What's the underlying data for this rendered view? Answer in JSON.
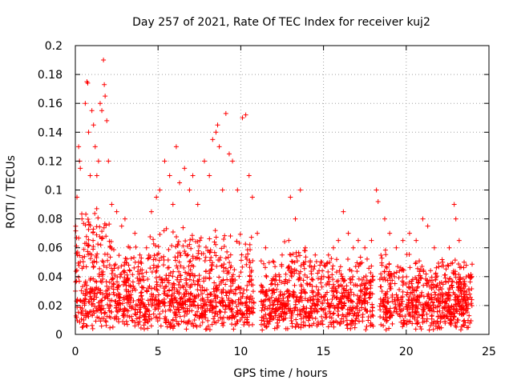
{
  "chart_data": {
    "type": "scatter",
    "title": "Day 257 of 2021, Rate Of TEC Index for receiver kuj2",
    "xlabel": "GPS time / hours",
    "ylabel": "ROTI / TECUs",
    "xlim": [
      0,
      25
    ],
    "ylim": [
      0,
      0.2
    ],
    "xticks": [
      "0",
      "5",
      "10",
      "15",
      "20",
      "25"
    ],
    "yticks": [
      "0",
      "0.02",
      "0.04",
      "0.06",
      "0.08",
      "0.1",
      "0.12",
      "0.14",
      "0.16",
      "0.18",
      "0.2"
    ],
    "grid": true,
    "marker": "+",
    "marker_color": "#ff0000",
    "series": [
      {
        "name": "ROTI",
        "note": "representative points read from the dense scatter; hours 0-24",
        "points": [
          [
            0.1,
            0.095
          ],
          [
            0.2,
            0.13
          ],
          [
            0.25,
            0.12
          ],
          [
            0.3,
            0.115
          ],
          [
            0.4,
            0.08
          ],
          [
            0.6,
            0.16
          ],
          [
            0.7,
            0.175
          ],
          [
            0.75,
            0.174
          ],
          [
            0.8,
            0.14
          ],
          [
            0.9,
            0.11
          ],
          [
            1.0,
            0.155
          ],
          [
            1.1,
            0.145
          ],
          [
            1.2,
            0.13
          ],
          [
            1.3,
            0.11
          ],
          [
            1.4,
            0.12
          ],
          [
            1.5,
            0.16
          ],
          [
            1.6,
            0.155
          ],
          [
            1.7,
            0.19
          ],
          [
            1.75,
            0.173
          ],
          [
            1.8,
            0.165
          ],
          [
            1.9,
            0.148
          ],
          [
            2.0,
            0.12
          ],
          [
            2.2,
            0.09
          ],
          [
            2.5,
            0.085
          ],
          [
            2.8,
            0.075
          ],
          [
            3.0,
            0.08
          ],
          [
            3.3,
            0.06
          ],
          [
            3.6,
            0.07
          ],
          [
            3.9,
            0.055
          ],
          [
            4.3,
            0.06
          ],
          [
            4.6,
            0.085
          ],
          [
            4.9,
            0.095
          ],
          [
            5.1,
            0.1
          ],
          [
            5.4,
            0.12
          ],
          [
            5.7,
            0.11
          ],
          [
            5.9,
            0.09
          ],
          [
            6.1,
            0.13
          ],
          [
            6.3,
            0.105
          ],
          [
            6.6,
            0.115
          ],
          [
            6.9,
            0.1
          ],
          [
            7.1,
            0.11
          ],
          [
            7.4,
            0.09
          ],
          [
            7.8,
            0.12
          ],
          [
            8.1,
            0.11
          ],
          [
            8.3,
            0.135
          ],
          [
            8.5,
            0.14
          ],
          [
            8.6,
            0.145
          ],
          [
            8.7,
            0.13
          ],
          [
            8.9,
            0.1
          ],
          [
            9.1,
            0.153
          ],
          [
            9.3,
            0.125
          ],
          [
            9.5,
            0.12
          ],
          [
            9.8,
            0.1
          ],
          [
            10.1,
            0.15
          ],
          [
            10.3,
            0.152
          ],
          [
            10.5,
            0.11
          ],
          [
            10.7,
            0.095
          ],
          [
            11.0,
            0.07
          ],
          [
            11.5,
            0.06
          ],
          [
            12.0,
            0.05
          ],
          [
            12.5,
            0.055
          ],
          [
            12.9,
            0.065
          ],
          [
            13.0,
            0.095
          ],
          [
            13.3,
            0.08
          ],
          [
            13.6,
            0.1
          ],
          [
            13.9,
            0.06
          ],
          [
            14.2,
            0.05
          ],
          [
            14.5,
            0.055
          ],
          [
            14.9,
            0.05
          ],
          [
            15.3,
            0.055
          ],
          [
            15.6,
            0.06
          ],
          [
            15.9,
            0.065
          ],
          [
            16.2,
            0.085
          ],
          [
            16.5,
            0.07
          ],
          [
            16.8,
            0.06
          ],
          [
            17.1,
            0.065
          ],
          [
            17.5,
            0.06
          ],
          [
            17.9,
            0.065
          ],
          [
            18.2,
            0.1
          ],
          [
            18.3,
            0.092
          ],
          [
            18.7,
            0.08
          ],
          [
            19.0,
            0.07
          ],
          [
            19.4,
            0.06
          ],
          [
            19.8,
            0.065
          ],
          [
            20.2,
            0.07
          ],
          [
            20.6,
            0.065
          ],
          [
            21.0,
            0.08
          ],
          [
            21.3,
            0.075
          ],
          [
            21.7,
            0.06
          ],
          [
            22.2,
            0.05
          ],
          [
            22.6,
            0.06
          ],
          [
            22.9,
            0.09
          ],
          [
            23.0,
            0.08
          ],
          [
            23.2,
            0.065
          ],
          [
            23.5,
            0.05
          ],
          [
            23.8,
            0.04
          ]
        ]
      }
    ]
  }
}
